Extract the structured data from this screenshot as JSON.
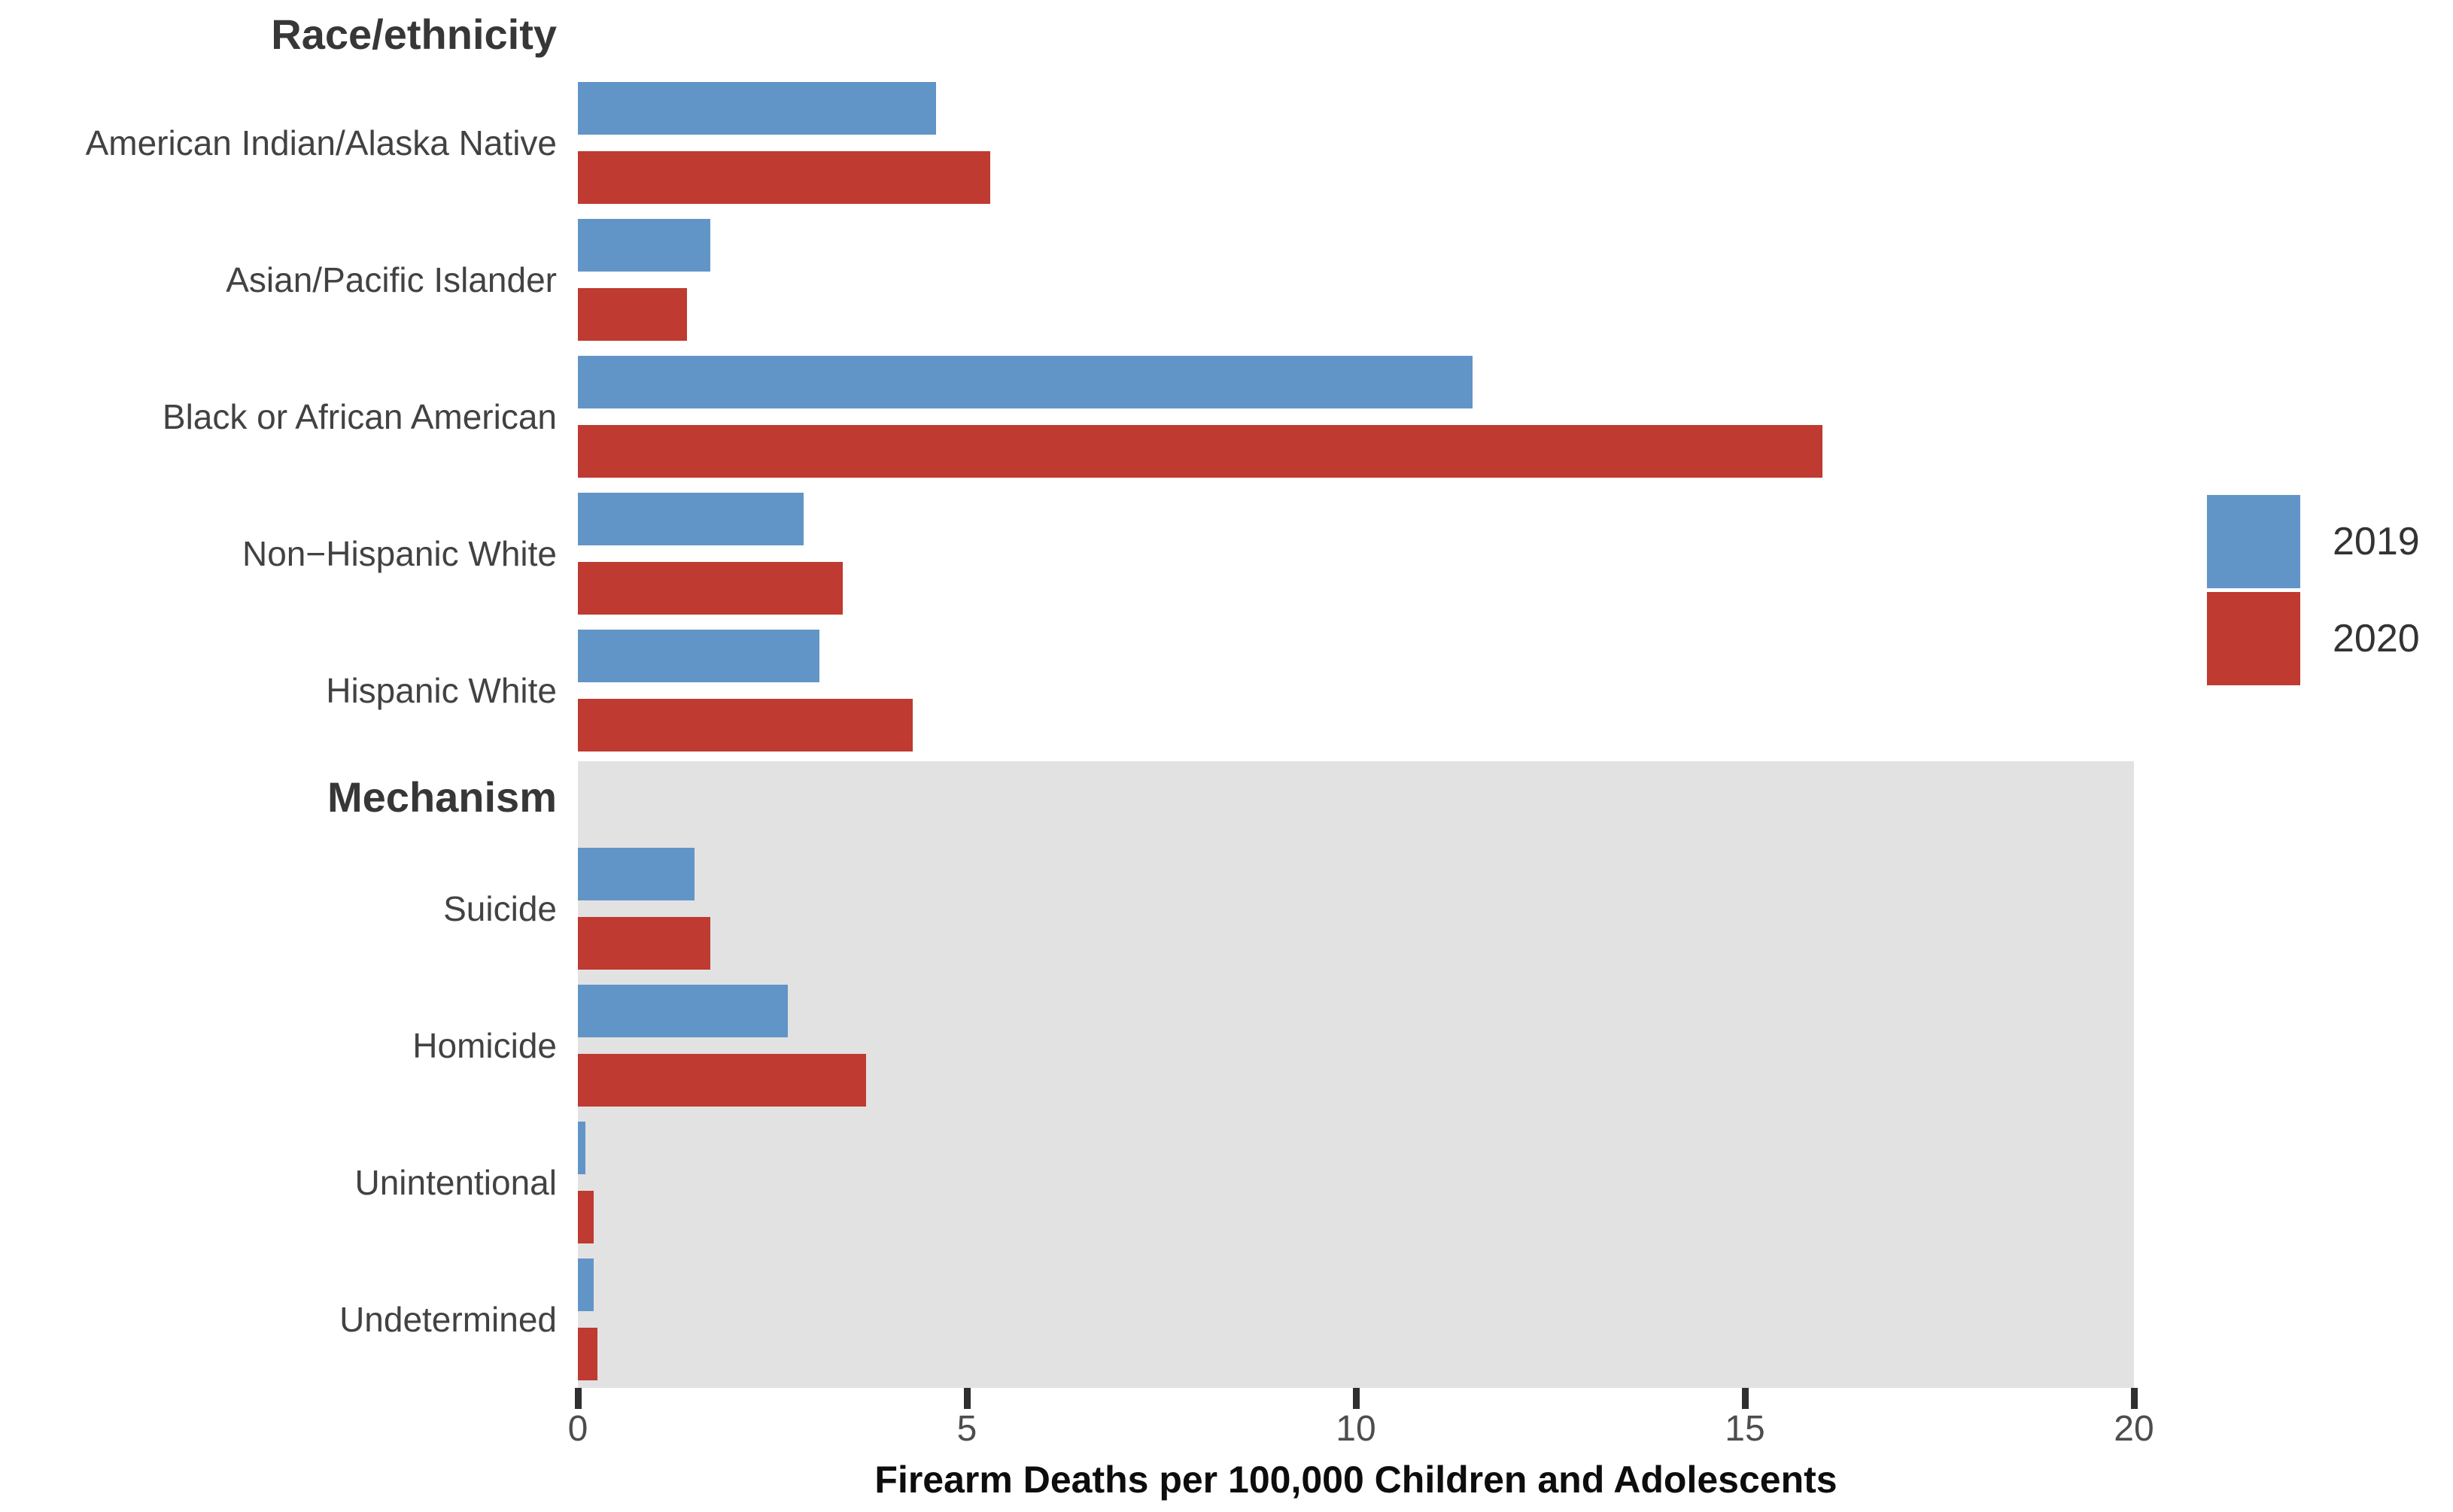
{
  "figure": {
    "axis_title": "Firearm Deaths per 100,000 Children and Adolescents",
    "legend": [
      {
        "label": "2019",
        "color": "#6295c7"
      },
      {
        "label": "2020",
        "color": "#bf3a30"
      }
    ],
    "colors": {
      "bar_2019": "#6295c7",
      "bar_2020": "#bf3a30",
      "panel_shade": "#e2e2e2",
      "category_label": "#424242",
      "group_header": "#373737",
      "tick_label": "#4d4d4d",
      "tick_mark": "#2f2f2f",
      "axis_title": "#0d0d0d"
    }
  },
  "chart_data": {
    "type": "bar",
    "orientation": "horizontal",
    "title": "",
    "xlabel": "Firearm Deaths per 100,000 Children and Adolescents",
    "ylabel": "",
    "xlim": [
      0,
      20
    ],
    "x_ticks": [
      0,
      5,
      10,
      15,
      20
    ],
    "grid": false,
    "legend_position": "right",
    "legend_entries": [
      "2019",
      "2020"
    ],
    "groups": [
      {
        "header": "Race/ethnicity",
        "shaded": false,
        "categories": [
          "American Indian/Alaska Native",
          "Asian/Pacific Islander",
          "Black or African American",
          "Non−Hispanic White",
          "Hispanic White"
        ],
        "series": [
          {
            "name": "2019",
            "values": [
              4.6,
              1.7,
              11.5,
              2.9,
              3.1
            ]
          },
          {
            "name": "2020",
            "values": [
              5.3,
              1.4,
              16.0,
              3.4,
              4.3
            ]
          }
        ]
      },
      {
        "header": "Mechanism",
        "shaded": true,
        "categories": [
          "Suicide",
          "Homicide",
          "Unintentional",
          "Undetermined"
        ],
        "series": [
          {
            "name": "2019",
            "values": [
              1.5,
              2.7,
              0.1,
              0.2
            ]
          },
          {
            "name": "2020",
            "values": [
              1.7,
              3.7,
              0.2,
              0.25
            ]
          }
        ]
      }
    ]
  }
}
